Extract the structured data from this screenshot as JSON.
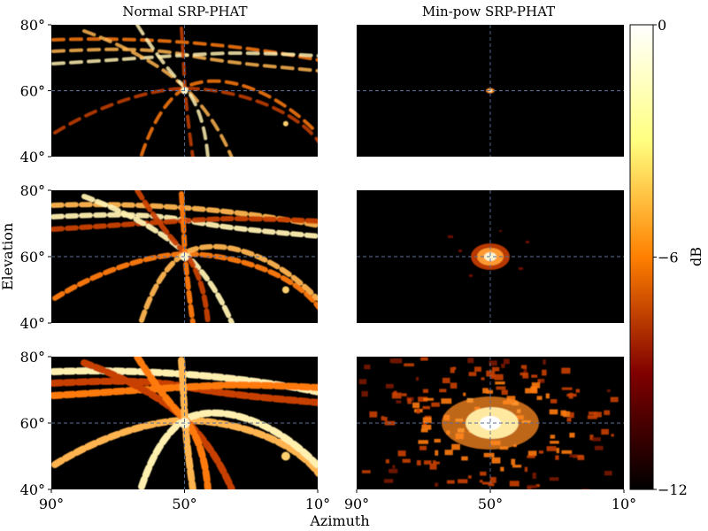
{
  "chart_data": {
    "type": "heatmap",
    "columns": [
      {
        "title": "Normal SRP-PHAT",
        "mode": "normal"
      },
      {
        "title": "Min-pow SRP-PHAT",
        "mode": "minpow"
      }
    ],
    "row_count": 3,
    "xlabel": "Azimuth",
    "ylabel": "Elevation",
    "xlim": [
      90,
      10
    ],
    "ylim": [
      40,
      80
    ],
    "x_ticks": [
      {
        "value": 90,
        "label": "90°"
      },
      {
        "value": 50,
        "label": "50°"
      },
      {
        "value": 10,
        "label": "10°"
      }
    ],
    "y_ticks": [
      {
        "value": 40,
        "label": "40°"
      },
      {
        "value": 60,
        "label": "60°"
      },
      {
        "value": 80,
        "label": "80°"
      }
    ],
    "source_marker": {
      "azimuth": 50,
      "elevation": 60
    },
    "colorbar": {
      "label": "dB",
      "colormap": "afmhot",
      "range": [
        -12,
        0
      ],
      "ticks": [
        {
          "value": 0,
          "label": "0"
        },
        {
          "value": -6,
          "label": "−6"
        },
        {
          "value": -12,
          "label": "−12"
        }
      ]
    },
    "colors": {
      "crosshair": "#5a6f9a",
      "background": "#000000"
    }
  }
}
